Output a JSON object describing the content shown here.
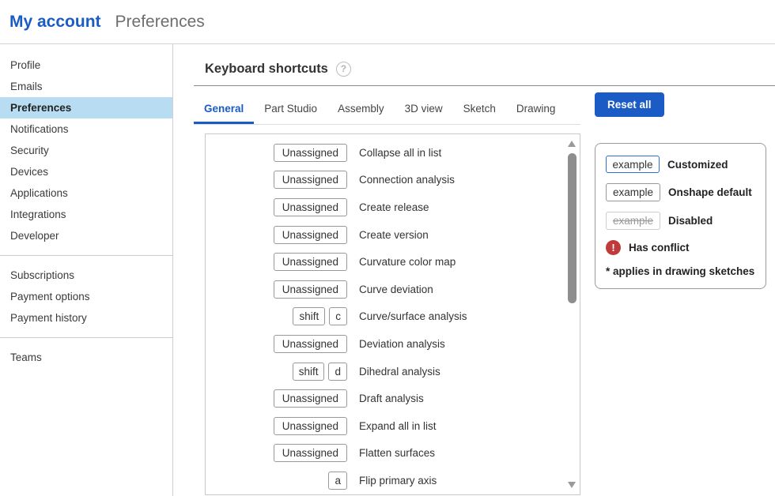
{
  "header": {
    "brand": "My account",
    "page": "Preferences"
  },
  "sidebar": {
    "groups": [
      {
        "items": [
          {
            "label": "Profile"
          },
          {
            "label": "Emails"
          },
          {
            "label": "Preferences",
            "selected": true
          },
          {
            "label": "Notifications"
          },
          {
            "label": "Security"
          },
          {
            "label": "Devices"
          },
          {
            "label": "Applications"
          },
          {
            "label": "Integrations"
          },
          {
            "label": "Developer"
          }
        ]
      },
      {
        "items": [
          {
            "label": "Subscriptions"
          },
          {
            "label": "Payment options"
          },
          {
            "label": "Payment history"
          }
        ]
      },
      {
        "items": [
          {
            "label": "Teams"
          }
        ]
      }
    ]
  },
  "main": {
    "title": "Keyboard shortcuts",
    "help_icon_glyph": "?",
    "tabs": [
      {
        "label": "General",
        "selected": true
      },
      {
        "label": "Part Studio"
      },
      {
        "label": "Assembly"
      },
      {
        "label": "3D view"
      },
      {
        "label": "Sketch"
      },
      {
        "label": "Drawing"
      }
    ],
    "reset_button_label": "Reset all",
    "shortcuts": [
      {
        "keys": [
          "Unassigned"
        ],
        "unassigned": true,
        "action": "Collapse all in list"
      },
      {
        "keys": [
          "Unassigned"
        ],
        "unassigned": true,
        "action": "Connection analysis"
      },
      {
        "keys": [
          "Unassigned"
        ],
        "unassigned": true,
        "action": "Create release"
      },
      {
        "keys": [
          "Unassigned"
        ],
        "unassigned": true,
        "action": "Create version"
      },
      {
        "keys": [
          "Unassigned"
        ],
        "unassigned": true,
        "action": "Curvature color map"
      },
      {
        "keys": [
          "Unassigned"
        ],
        "unassigned": true,
        "action": "Curve deviation"
      },
      {
        "keys": [
          "shift",
          "c"
        ],
        "unassigned": false,
        "action": "Curve/surface analysis"
      },
      {
        "keys": [
          "Unassigned"
        ],
        "unassigned": true,
        "action": "Deviation analysis"
      },
      {
        "keys": [
          "shift",
          "d"
        ],
        "unassigned": false,
        "action": "Dihedral analysis"
      },
      {
        "keys": [
          "Unassigned"
        ],
        "unassigned": true,
        "action": "Draft analysis"
      },
      {
        "keys": [
          "Unassigned"
        ],
        "unassigned": true,
        "action": "Expand all in list"
      },
      {
        "keys": [
          "Unassigned"
        ],
        "unassigned": true,
        "action": "Flatten surfaces"
      },
      {
        "keys": [
          "a"
        ],
        "unassigned": false,
        "action": "Flip primary axis"
      }
    ],
    "legend": {
      "example_label": "example",
      "customized_label": "Customized",
      "default_label": "Onshape default",
      "disabled_label": "Disabled",
      "conflict_label": "Has conflict",
      "conflict_icon_glyph": "!",
      "note": "* applies in drawing sketches"
    }
  },
  "colors": {
    "accent_blue": "#1a5bc6",
    "sidebar_selected_bg": "#b8dcf2",
    "conflict_red": "#bf3a3a"
  }
}
